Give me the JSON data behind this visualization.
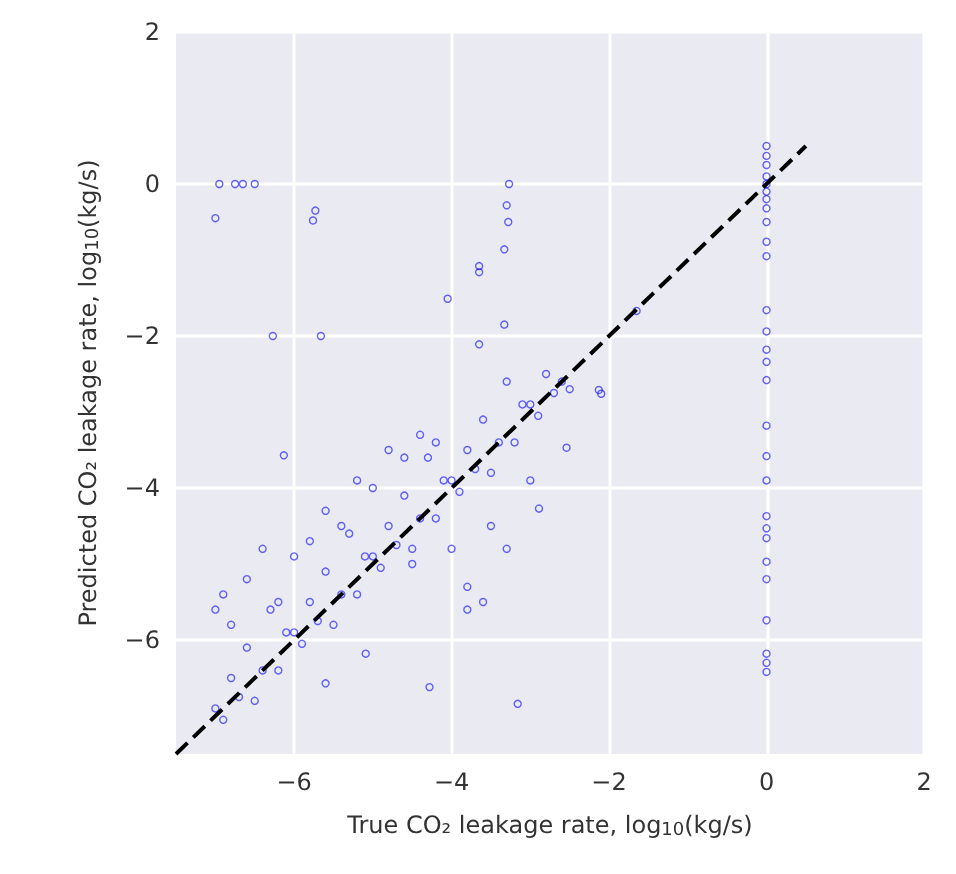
{
  "chart_data": {
    "type": "scatter",
    "xlabel": "True CO₂ leakage rate, log$_{10}$(kg/s)",
    "ylabel": "Predicted CO₂ leakage rate, log$_{10}$(kg/s)",
    "xlim": [
      -7.5,
      2
    ],
    "ylim": [
      -7.5,
      2
    ],
    "xticks": [
      -6,
      -4,
      -2,
      0,
      2
    ],
    "yticks": [
      -6,
      -4,
      -2,
      0,
      2
    ],
    "grid": true,
    "marker": "circle",
    "series": [
      {
        "type": "scatter",
        "color": "#0000ff",
        "x": [
          -7.0,
          -6.9,
          -6.8,
          -6.7,
          -6.6,
          -6.5,
          -6.4,
          -6.3,
          -6.2,
          -6.1,
          -6.0,
          -5.9,
          -5.8,
          -5.7,
          -5.6,
          -5.5,
          -5.4,
          -5.3,
          -5.2,
          -5.1,
          -5.0,
          -4.9,
          -4.8,
          -4.7,
          -4.6,
          -4.5,
          -4.4,
          -4.3,
          -4.2,
          -4.1,
          -4.0,
          -3.9,
          -3.8,
          -3.7,
          -3.6,
          -3.5,
          -3.4,
          -3.3,
          -3.2,
          -3.1,
          -3.0,
          -2.9,
          -2.8,
          -2.7,
          -2.6,
          -2.5,
          -7.0,
          -6.9,
          -6.8,
          -6.6,
          -6.4,
          -6.2,
          -6.0,
          -5.8,
          -5.6,
          -5.4,
          -5.2,
          -5.0,
          -4.8,
          -4.6,
          -4.4,
          -4.2,
          -4.5,
          -4.0,
          -3.8,
          -3.5,
          -3.3,
          -3.0,
          -3.8,
          -3.6,
          -6.95,
          -6.75,
          -6.65,
          -6.5,
          -7.0,
          -5.73,
          -5.76,
          -3.27,
          -3.3,
          -3.28,
          -3.33,
          -3.65,
          -3.65,
          -4.05,
          -6.27,
          -5.66,
          -3.33,
          -3.65,
          -1.65,
          -2.13,
          -2.1,
          -2.54,
          -2.89,
          -3.16,
          -4.28,
          -5.6,
          -6.13,
          -5.09,
          0,
          0,
          0,
          0,
          0,
          0,
          0,
          0,
          0,
          0,
          0,
          0,
          0,
          0,
          0,
          0,
          0,
          0,
          0,
          0,
          0,
          0,
          0,
          0,
          0,
          0,
          0,
          0
        ],
        "values": [
          -6.9,
          -7.05,
          -6.5,
          -6.75,
          -6.1,
          -6.8,
          -6.4,
          -5.6,
          -6.4,
          -5.9,
          -5.9,
          -6.05,
          -5.5,
          -5.75,
          -5.1,
          -5.8,
          -5.4,
          -4.6,
          -5.4,
          -4.9,
          -4.9,
          -5.05,
          -4.5,
          -4.75,
          -4.1,
          -4.8,
          -4.4,
          -3.6,
          -4.4,
          -3.9,
          -3.9,
          -4.05,
          -3.5,
          -3.75,
          -3.1,
          -3.8,
          -3.4,
          -2.6,
          -3.4,
          -2.9,
          -2.9,
          -3.05,
          -2.5,
          -2.75,
          -2.6,
          -2.7,
          -5.6,
          -5.4,
          -5.8,
          -5.2,
          -4.8,
          -5.5,
          -4.9,
          -4.7,
          -4.3,
          -4.5,
          -3.9,
          -4.0,
          -3.5,
          -3.6,
          -3.3,
          -3.4,
          -5.0,
          -4.8,
          -5.3,
          -4.5,
          -4.8,
          -3.9,
          -5.6,
          -5.5,
          0,
          0,
          0,
          0,
          -0.45,
          -0.35,
          -0.48,
          0,
          -0.28,
          -0.5,
          -0.86,
          -1.08,
          -1.16,
          -1.51,
          -2.0,
          -2.0,
          -1.85,
          -2.11,
          -1.67,
          -2.71,
          -2.76,
          -3.47,
          -4.27,
          -6.84,
          -6.62,
          -6.57,
          -3.57,
          -6.18,
          0.5,
          0.37,
          0.25,
          0.1,
          0,
          -0.1,
          -0.2,
          -0.32,
          -0.5,
          -0.76,
          -0.95,
          -1.66,
          -1.94,
          -2.18,
          -2.34,
          -2.58,
          -3.18,
          -3.58,
          -3.9,
          -4.37,
          -4.53,
          -4.66,
          -4.97,
          -5.2,
          -5.74,
          -6.18,
          -6.3,
          -6.42
        ]
      },
      {
        "type": "line",
        "color": "#000000",
        "line_style": "dashed",
        "marker": "none",
        "x": [
          -7.5,
          0.5
        ],
        "values": [
          -7.5,
          0.5
        ]
      }
    ]
  }
}
